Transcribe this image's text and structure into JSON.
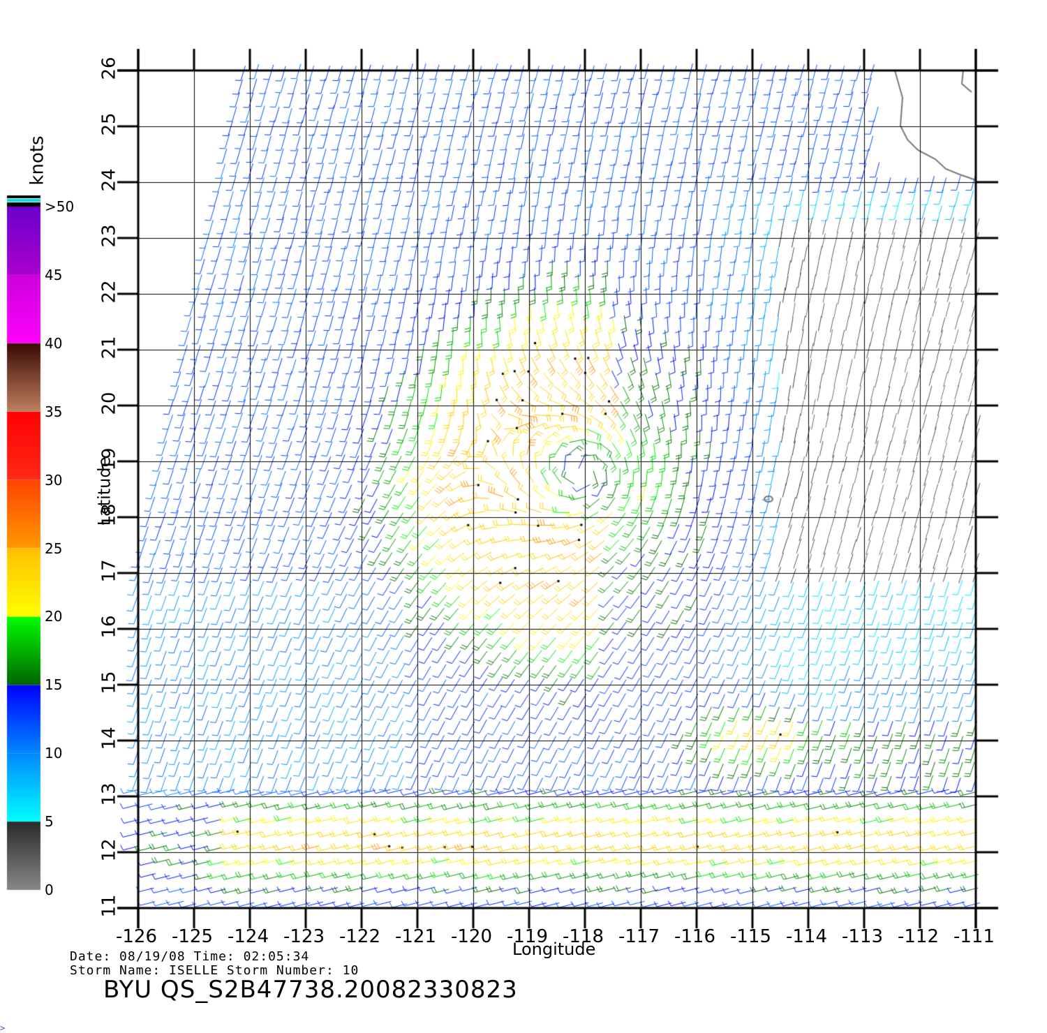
{
  "chart_data": {
    "type": "wind-barb-map",
    "xlabel": "Longitude",
    "ylabel": "Latitude",
    "xlim": [
      -126,
      -111
    ],
    "ylim": [
      11,
      26
    ],
    "x_ticks": [
      "-126",
      "-125",
      "-124",
      "-123",
      "-122",
      "-121",
      "-120",
      "-119",
      "-118",
      "-117",
      "-116",
      "-115",
      "-114",
      "-113",
      "-112",
      "-111"
    ],
    "y_ticks": [
      "11",
      "12",
      "13",
      "14",
      "15",
      "16",
      "17",
      "18",
      "19",
      "20",
      "21",
      "22",
      "23",
      "24",
      "25",
      "26"
    ],
    "grid": true,
    "storm_center": {
      "lon": -118,
      "lat": 18.8
    },
    "colorbar": {
      "title": "knots",
      "labels": [
        "0",
        "5",
        "10",
        "15",
        "20",
        "25",
        "30",
        "35",
        "40",
        "45",
        ">50"
      ],
      "bands": [
        {
          "min": 0,
          "max": 5,
          "colors": [
            "#888888",
            "#2a2a2a"
          ]
        },
        {
          "min": 5,
          "max": 10,
          "colors": [
            "#00ffff",
            "#0088ff"
          ]
        },
        {
          "min": 10,
          "max": 15,
          "colors": [
            "#0088ff",
            "#0000ff"
          ]
        },
        {
          "min": 15,
          "max": 20,
          "colors": [
            "#006400",
            "#00ff00"
          ]
        },
        {
          "min": 20,
          "max": 25,
          "colors": [
            "#ffff00",
            "#ffc000"
          ]
        },
        {
          "min": 25,
          "max": 30,
          "colors": [
            "#ff9900",
            "#ff4400"
          ]
        },
        {
          "min": 30,
          "max": 35,
          "colors": [
            "#ff2a1a",
            "#ff0000"
          ]
        },
        {
          "min": 35,
          "max": 40,
          "colors": [
            "#c08060",
            "#3a0a05"
          ]
        },
        {
          "min": 40,
          "max": 45,
          "colors": [
            "#ff00ff",
            "#cc00dd"
          ]
        },
        {
          "min": 45,
          "max": 50,
          "colors": [
            "#aa00cc",
            "#6a00cc"
          ]
        }
      ],
      "above_max_colors": [
        "#000000",
        "#00e0e0"
      ]
    }
  },
  "info": {
    "line1": "Date: 08/19/08   Time: 02:05:34",
    "line2": "Storm  Name: ISELLE   Storm  Number: 10"
  },
  "caption": "BYU  QS_S2B47738.20082330823",
  "corner_mark": ">"
}
